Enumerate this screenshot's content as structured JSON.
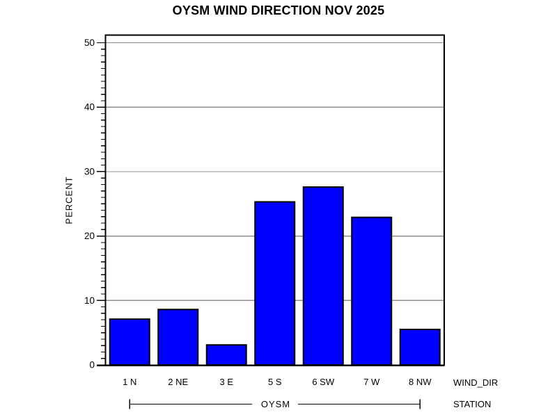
{
  "title": "OYSM WIND DIRECTION NOV 2025",
  "chart_data": {
    "type": "bar",
    "title": "OYSM WIND DIRECTION NOV 2025",
    "categories": [
      "1 N",
      "2 NE",
      "3 E",
      "5 S",
      "6 SW",
      "7 W",
      "8 NW"
    ],
    "values": [
      7.1,
      8.6,
      3.1,
      25.3,
      27.6,
      22.9,
      5.5
    ],
    "xlabel": "WIND_DIR",
    "ylabel": "PERCENT",
    "group_label": "STATION",
    "group_value": "OYSM",
    "ylim": [
      0,
      50
    ],
    "yticks": [
      0,
      10,
      20,
      30,
      40,
      50
    ],
    "minor_tick_step": 1,
    "grid": true,
    "legend": "none",
    "bar_color": "#0000ff",
    "bar_border_color": "#000000",
    "grid_color": "#8f8f8f",
    "axis_color": "#000000"
  }
}
